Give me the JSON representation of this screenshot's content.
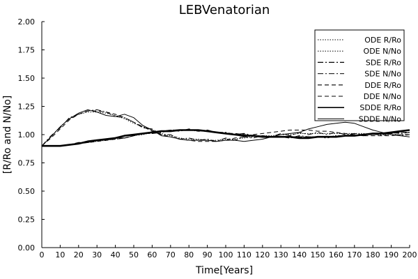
{
  "chart_data": {
    "type": "line",
    "title": "LEBVenatorian",
    "xlabel": "Time[Years]",
    "ylabel": "[R/Ro and N/No]",
    "xlim": [
      0,
      200
    ],
    "ylim": [
      0,
      2
    ],
    "x_ticks": [
      0,
      10,
      20,
      30,
      40,
      50,
      60,
      70,
      80,
      90,
      100,
      110,
      120,
      130,
      140,
      150,
      160,
      170,
      180,
      190,
      200
    ],
    "y_ticks": [
      "0.00",
      "0.25",
      "0.50",
      "0.75",
      "1.00",
      "1.25",
      "1.50",
      "1.75",
      "2.00"
    ],
    "grid": false,
    "legend_position": "top-right",
    "x": [
      0,
      5,
      10,
      15,
      20,
      25,
      30,
      35,
      40,
      45,
      50,
      55,
      60,
      65,
      70,
      75,
      80,
      85,
      90,
      95,
      100,
      105,
      110,
      115,
      120,
      125,
      130,
      135,
      140,
      145,
      150,
      155,
      160,
      165,
      170,
      175,
      180,
      185,
      190,
      195,
      200
    ],
    "series": [
      {
        "name": "ODE R/Ro",
        "dash": "1.5 2",
        "width": 1,
        "values": [
          0.9,
          0.9,
          0.9,
          0.91,
          0.92,
          0.93,
          0.94,
          0.95,
          0.96,
          0.97,
          0.99,
          1.0,
          1.02,
          1.03,
          1.03,
          1.04,
          1.04,
          1.03,
          1.03,
          1.02,
          1.01,
          1.0,
          1.0,
          0.99,
          0.99,
          0.98,
          0.98,
          0.98,
          0.98,
          0.98,
          0.98,
          0.98,
          0.99,
          0.99,
          0.99,
          1.0,
          1.0,
          1.01,
          1.01,
          1.02,
          1.02
        ]
      },
      {
        "name": "ODE N/No",
        "dash": "1.5 2",
        "width": 1,
        "values": [
          0.9,
          0.98,
          1.07,
          1.14,
          1.18,
          1.2,
          1.2,
          1.19,
          1.17,
          1.14,
          1.1,
          1.07,
          1.04,
          1.01,
          0.99,
          0.97,
          0.96,
          0.96,
          0.95,
          0.95,
          0.96,
          0.96,
          0.97,
          0.98,
          0.99,
          0.99,
          1.0,
          1.0,
          1.01,
          1.01,
          1.01,
          1.01,
          1.01,
          1.01,
          1.01,
          1.01,
          1.0,
          1.0,
          1.0,
          1.0,
          1.0
        ]
      },
      {
        "name": "SDE R/Ro",
        "dash": "8 3 2 3",
        "width": 1.2,
        "values": [
          0.9,
          0.9,
          0.9,
          0.91,
          0.93,
          0.93,
          0.95,
          0.95,
          0.97,
          0.97,
          0.99,
          1.01,
          1.01,
          1.02,
          1.04,
          1.03,
          1.05,
          1.03,
          1.04,
          1.02,
          1.02,
          1.0,
          1.01,
          0.99,
          0.99,
          0.98,
          0.98,
          0.97,
          0.99,
          0.98,
          0.98,
          0.97,
          0.99,
          0.99,
          1.0,
          0.99,
          1.01,
          1.0,
          1.02,
          1.01,
          1.02
        ]
      },
      {
        "name": "SDE N/No",
        "dash": "8 3 2 3",
        "width": 1,
        "values": [
          0.9,
          0.99,
          1.06,
          1.15,
          1.18,
          1.21,
          1.22,
          1.2,
          1.16,
          1.15,
          1.11,
          1.06,
          1.05,
          1.0,
          1.0,
          0.96,
          0.97,
          0.95,
          0.96,
          0.94,
          0.97,
          0.95,
          0.98,
          0.97,
          0.99,
          0.98,
          1.01,
          0.99,
          1.02,
          1.0,
          1.02,
          1.0,
          1.02,
          1.0,
          1.01,
          1.0,
          1.01,
          0.99,
          1.01,
          0.99,
          1.0
        ]
      },
      {
        "name": "DDE R/Ro",
        "dash": "6 4",
        "width": 1.2,
        "values": [
          0.9,
          0.9,
          0.9,
          0.91,
          0.92,
          0.93,
          0.94,
          0.95,
          0.96,
          0.97,
          0.99,
          1.01,
          1.02,
          1.03,
          1.04,
          1.04,
          1.04,
          1.04,
          1.03,
          1.02,
          1.01,
          1.01,
          1.0,
          0.99,
          0.98,
          0.98,
          0.98,
          0.98,
          0.98,
          0.98,
          0.98,
          0.98,
          0.98,
          0.99,
          0.99,
          1.0,
          1.0,
          1.01,
          1.01,
          1.02,
          1.02
        ]
      },
      {
        "name": "DDE N/No",
        "dash": "6 4",
        "width": 1,
        "values": [
          0.9,
          0.97,
          1.05,
          1.13,
          1.18,
          1.21,
          1.21,
          1.2,
          1.18,
          1.15,
          1.11,
          1.07,
          1.03,
          1.0,
          0.98,
          0.96,
          0.95,
          0.94,
          0.94,
          0.94,
          0.95,
          0.97,
          0.98,
          1.0,
          1.01,
          1.02,
          1.03,
          1.04,
          1.04,
          1.04,
          1.03,
          1.03,
          1.02,
          1.01,
          1.0,
          0.99,
          0.99,
          0.99,
          0.99,
          1.0,
          1.0
        ]
      },
      {
        "name": "SDDE R/Ro",
        "dash": "",
        "width": 2.6,
        "values": [
          0.9,
          0.9,
          0.9,
          0.91,
          0.92,
          0.94,
          0.95,
          0.96,
          0.97,
          0.99,
          1.0,
          1.01,
          1.02,
          1.03,
          1.03,
          1.04,
          1.04,
          1.04,
          1.03,
          1.02,
          1.01,
          1.0,
          0.99,
          0.99,
          0.98,
          0.98,
          0.98,
          0.98,
          0.97,
          0.97,
          0.98,
          0.98,
          0.98,
          0.99,
          0.99,
          1.0,
          1.01,
          1.01,
          1.02,
          1.03,
          1.04
        ]
      },
      {
        "name": "SDDE N/No",
        "dash": "",
        "width": 1,
        "values": [
          0.9,
          0.98,
          1.07,
          1.14,
          1.19,
          1.22,
          1.2,
          1.17,
          1.16,
          1.18,
          1.15,
          1.08,
          1.04,
          0.99,
          0.98,
          0.96,
          0.95,
          0.95,
          0.95,
          0.94,
          0.95,
          0.95,
          0.94,
          0.95,
          0.96,
          0.98,
          1.0,
          1.01,
          1.02,
          1.05,
          1.07,
          1.09,
          1.1,
          1.11,
          1.1,
          1.07,
          1.04,
          1.02,
          1.0,
          0.99,
          0.98
        ]
      }
    ]
  }
}
